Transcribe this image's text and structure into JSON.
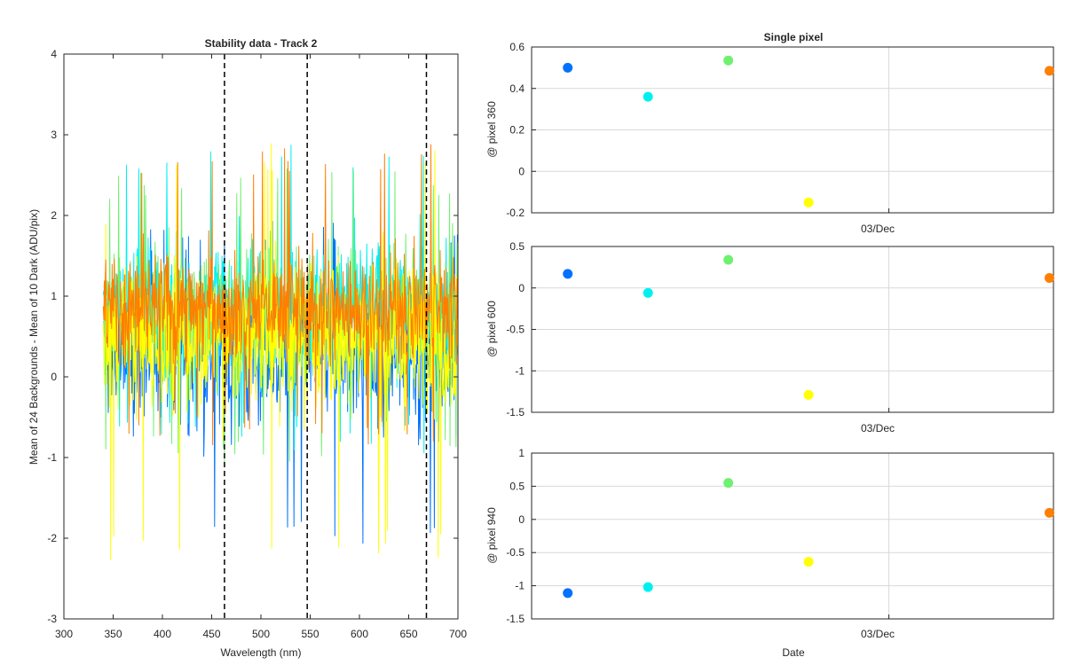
{
  "figure": {
    "background": "#ffffff",
    "axis_color": "#262626",
    "grid_color": "#d9d9d9",
    "series_colors": [
      "#0072ff",
      "#00f0f0",
      "#70f070",
      "#ffff00",
      "#ff7f00"
    ]
  },
  "chart_data": [
    {
      "type": "line",
      "title": "Stability data - Track 2",
      "xlabel": "Wavelength (nm)",
      "ylabel": "Mean of 24 Backgrounds - Mean of 10 Dark (ADU/pix)",
      "xlim": [
        300,
        700
      ],
      "ylim": [
        -3,
        4
      ],
      "xticks": [
        "300",
        "350",
        "400",
        "450",
        "500",
        "550",
        "600",
        "650",
        "700"
      ],
      "yticks": [
        "-3",
        "-2",
        "-1",
        "0",
        "1",
        "2",
        "3",
        "4"
      ],
      "x_range_data": [
        340,
        700
      ],
      "grid": false,
      "vertical_dashed_lines": [
        463,
        547,
        668
      ],
      "series": [
        {
          "color": "#0072ff",
          "mean": 0.25,
          "spread": 0.78,
          "min": -2.15,
          "max": 1.95
        },
        {
          "color": "#00f0f0",
          "mean": 0.85,
          "spread": 0.75,
          "min": -0.95,
          "max": 2.97
        },
        {
          "color": "#70f070",
          "mean": 0.8,
          "spread": 0.7,
          "min": -1.1,
          "max": 2.6
        },
        {
          "color": "#ffff00",
          "mean": 0.5,
          "spread": 0.85,
          "min": -2.28,
          "max": 2.9
        },
        {
          "color": "#ff7f00",
          "mean": 0.85,
          "spread": 0.62,
          "min": -0.85,
          "max": 2.9
        }
      ]
    },
    {
      "type": "scatter",
      "title": "Single pixel",
      "ylabel": "@ pixel 360",
      "xlabel": "",
      "xtick_label": "03/Dec",
      "ylim": [
        -0.2,
        0.6
      ],
      "yticks": [
        "-0.2",
        "0",
        "0.2",
        "0.4",
        "0.6"
      ],
      "yvalues": [
        -0.2,
        0,
        0.2,
        0.4,
        0.6
      ],
      "grid": true,
      "points": [
        {
          "order": 1,
          "y": 0.5,
          "color": "#0072ff"
        },
        {
          "order": 2,
          "y": 0.36,
          "color": "#00f0f0"
        },
        {
          "order": 3,
          "y": 0.535,
          "color": "#70f070"
        },
        {
          "order": 4,
          "y": -0.15,
          "color": "#ffff00"
        },
        {
          "order": 7,
          "y": 0.485,
          "color": "#ff7f00"
        }
      ]
    },
    {
      "type": "scatter",
      "title": "",
      "ylabel": "@ pixel 600",
      "xlabel": "",
      "xtick_label": "03/Dec",
      "ylim": [
        -1.5,
        0.5
      ],
      "yticks": [
        "-1.5",
        "-1",
        "-0.5",
        "0",
        "0.5"
      ],
      "yvalues": [
        -1.5,
        -1,
        -0.5,
        0,
        0.5
      ],
      "grid": true,
      "points": [
        {
          "order": 1,
          "y": 0.17,
          "color": "#0072ff"
        },
        {
          "order": 2,
          "y": -0.06,
          "color": "#00f0f0"
        },
        {
          "order": 3,
          "y": 0.34,
          "color": "#70f070"
        },
        {
          "order": 4,
          "y": -1.29,
          "color": "#ffff00"
        },
        {
          "order": 7,
          "y": 0.12,
          "color": "#ff7f00"
        }
      ]
    },
    {
      "type": "scatter",
      "title": "",
      "ylabel": "@ pixel 940",
      "xlabel": "Date",
      "xtick_label": "03/Dec",
      "ylim": [
        -1.5,
        1
      ],
      "yticks": [
        "-1.5",
        "-1",
        "-0.5",
        "0",
        "0.5",
        "1"
      ],
      "yvalues": [
        -1.5,
        -1,
        -0.5,
        0,
        0.5,
        1
      ],
      "grid": true,
      "points": [
        {
          "order": 1,
          "y": -1.11,
          "color": "#0072ff"
        },
        {
          "order": 2,
          "y": -1.02,
          "color": "#00f0f0"
        },
        {
          "order": 3,
          "y": 0.55,
          "color": "#70f070"
        },
        {
          "order": 4,
          "y": -0.64,
          "color": "#ffff00"
        },
        {
          "order": 7,
          "y": 0.1,
          "color": "#ff7f00"
        }
      ]
    }
  ]
}
